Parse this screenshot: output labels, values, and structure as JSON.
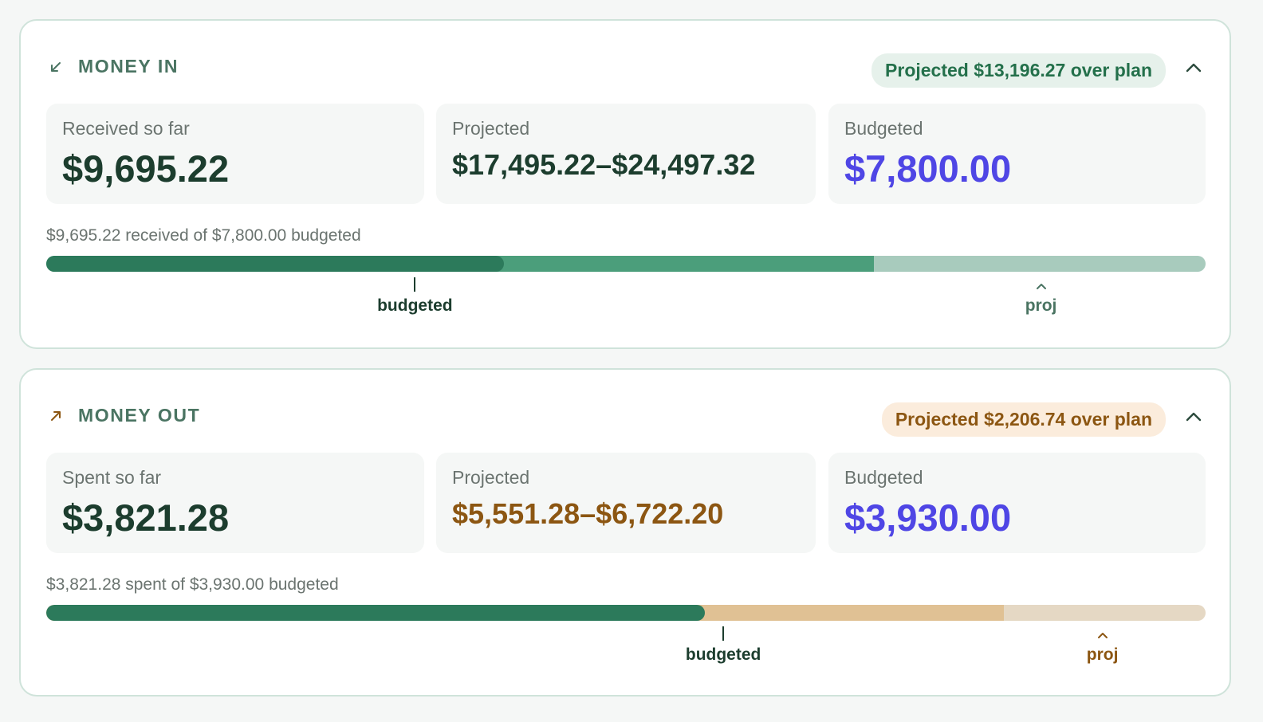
{
  "money_in": {
    "title": "MONEY IN",
    "icon": "arrow-down-left-icon",
    "pill": "Projected $13,196.27 over plan",
    "stats": {
      "received_label": "Received so far",
      "received_value": "$9,695.22",
      "projected_label": "Projected",
      "projected_value": "$17,495.22–$24,497.32",
      "budgeted_label": "Budgeted",
      "budgeted_value": "$7,800.00"
    },
    "progress_caption": "$9,695.22 received of $7,800.00 budgeted",
    "progress": {
      "actual_fraction": 0.395,
      "projected_low_fraction": 0.714,
      "projected_high_fraction": 1.0,
      "budget_marker_fraction": 0.318,
      "projection_marker_fraction": 0.858
    },
    "budget_marker_label": "budgeted",
    "projection_marker_label": "proj",
    "colors": {
      "actual": "#2c7a5b",
      "projected_low": "#4b9e7b",
      "projected_high": "#a8cbbd",
      "marker_proj": "#4a7462"
    }
  },
  "money_out": {
    "title": "MONEY OUT",
    "icon": "arrow-up-right-icon",
    "pill": "Projected $2,206.74 over plan",
    "stats": {
      "spent_label": "Spent so far",
      "spent_value": "$3,821.28",
      "projected_label": "Projected",
      "projected_value": "$5,551.28–$6,722.20",
      "budgeted_label": "Budgeted",
      "budgeted_value": "$3,930.00"
    },
    "progress_caption": "$3,821.28 spent of $3,930.00 budgeted",
    "progress": {
      "actual_fraction": 0.568,
      "projected_low_fraction": 0.826,
      "projected_high_fraction": 1.0,
      "budget_marker_fraction": 0.584,
      "projection_marker_fraction": 0.911
    },
    "budget_marker_label": "budgeted",
    "projection_marker_label": "proj",
    "colors": {
      "actual": "#2c7a5b",
      "projected_low": "#e0c194",
      "projected_high": "#e5d8c4",
      "marker_proj": "#8c5612"
    }
  },
  "colors": {
    "accent_purple": "#4f46e5",
    "primary_text": "#1c3d2e",
    "amber_text": "#8c5612"
  }
}
